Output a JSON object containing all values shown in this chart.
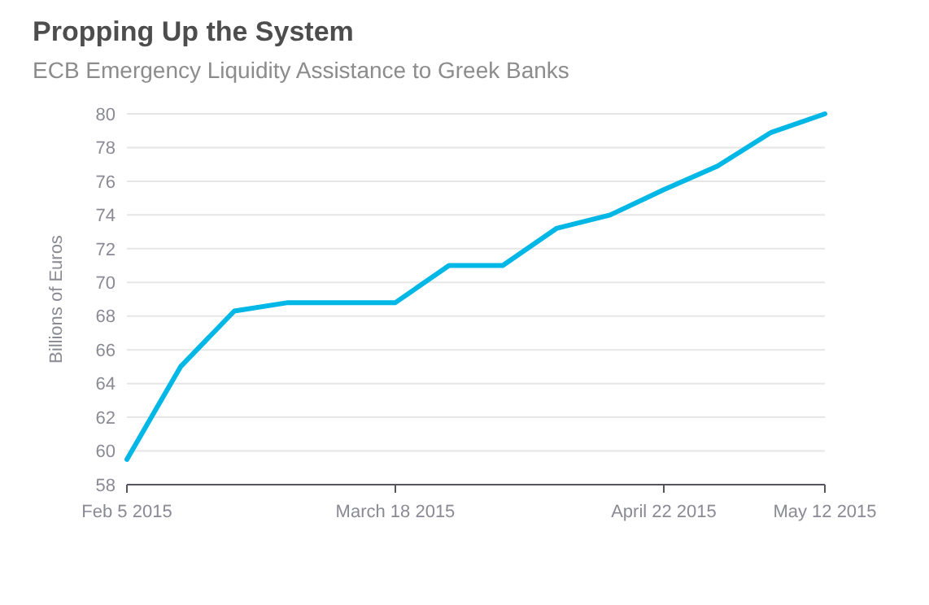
{
  "chart_data": {
    "type": "line",
    "title": "Propping Up the System",
    "subtitle": "ECB Emergency Liquidity Assistance to Greek Banks",
    "ylabel": "Billions of Euros",
    "categories": [
      "Feb 5 2015",
      null,
      null,
      null,
      null,
      "March 18 2015",
      null,
      null,
      null,
      null,
      "April 22 2015",
      null,
      null,
      "May 12 2015"
    ],
    "series": [
      {
        "color": "#00b7e6",
        "values": [
          59.5,
          65,
          68.3,
          68.8,
          68.8,
          68.8,
          71,
          71,
          73.2,
          74,
          75.5,
          76.9,
          78.9,
          80
        ]
      }
    ],
    "ylim": [
      58,
      80
    ],
    "yticks": [
      58,
      60,
      62,
      64,
      66,
      68,
      70,
      72,
      74,
      76,
      78,
      80
    ],
    "grid": "y"
  }
}
